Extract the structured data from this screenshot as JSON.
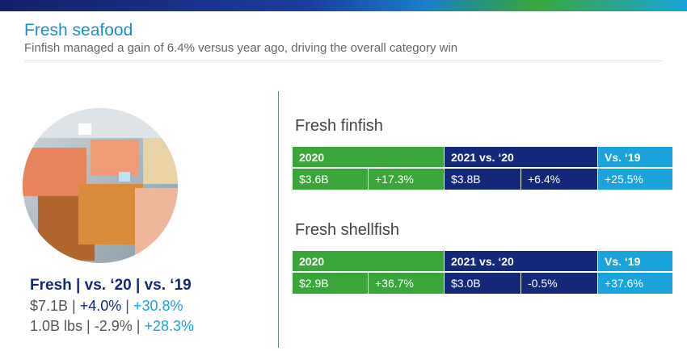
{
  "header": {
    "title": "Fresh seafood",
    "subtitle": "Finfish managed a gain of 6.4% versus year ago, driving the overall category win"
  },
  "summary": {
    "separator": "|",
    "heading": [
      "Fresh",
      "vs. ‘20",
      "vs. ‘19"
    ],
    "rows": [
      [
        "$7.1B",
        "+4.0%",
        "+30.8%"
      ],
      [
        "1.0B lbs",
        "-2.9%",
        "+28.3%"
      ]
    ]
  },
  "tables": [
    {
      "title": "Fresh finfish",
      "columns": [
        "2020",
        "2021 vs. ‘20",
        "Vs. ‘19"
      ],
      "values": [
        "$3.6B",
        "+17.3%",
        "$3.8B",
        "+6.4%",
        "+25.5%"
      ]
    },
    {
      "title": "Fresh shellfish",
      "columns": [
        "2020",
        "2021 vs. ‘20",
        "Vs. ‘19"
      ],
      "values": [
        "$2.9B",
        "+36.7%",
        "$3.0B",
        "-0.5%",
        "+37.6%"
      ]
    }
  ]
}
